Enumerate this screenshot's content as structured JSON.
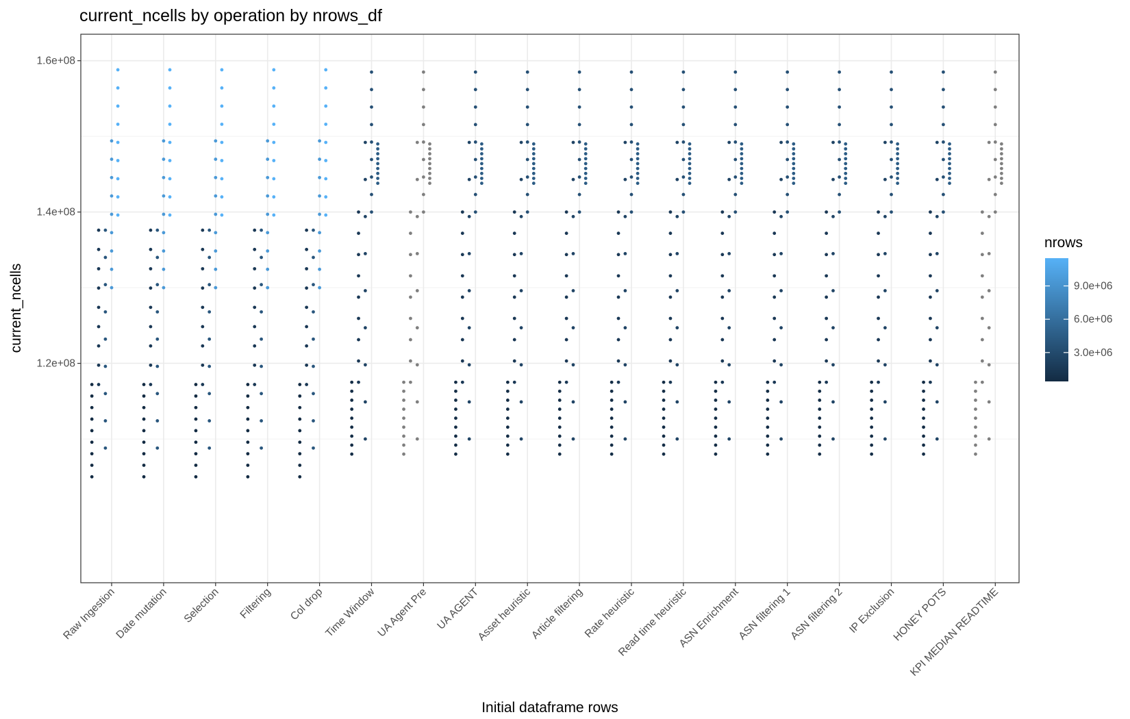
{
  "chart_data": {
    "type": "scatter",
    "title": "current_ncells by operation by nrows_df",
    "xlabel": "Initial dataframe rows",
    "ylabel": "current_ncells",
    "categories": [
      "Raw Ingestion",
      "Date mutation",
      "Selection",
      "Filtering",
      "Col drop",
      "Time Window",
      "UA Agent Pre",
      "UA AGENT",
      "Asset heuristic",
      "Article filtering",
      "Rate heuristic",
      "Read time heuristic",
      "ASN Enrichment",
      "ASN filtering 1",
      "ASN filtering 2",
      "IP Exclusion",
      "HONEY POTS",
      "KPI MEDIAN READTIME"
    ],
    "ylim": [
      91000000,
      163500000
    ],
    "yticks": [
      120000000,
      140000000,
      160000000
    ],
    "ytick_labels": [
      "1.2e+08",
      "1.4e+08",
      "1.6e+08"
    ],
    "grid": true,
    "color_scale": {
      "name": "nrows",
      "low_color": "#132b43",
      "high_color": "#56b1f7",
      "na_color": "#7f7f7f",
      "range": [
        400000,
        11500000
      ],
      "ticks": [
        3000000,
        6000000,
        9000000
      ],
      "tick_labels": [
        "3.0e+06",
        "6.0e+06",
        "9.0e+06"
      ]
    },
    "legend_position": "right",
    "series": [
      {
        "categories": [
          "Raw Ingestion",
          "Date mutation",
          "Selection",
          "Filtering",
          "Col drop"
        ],
        "color_value": 400000,
        "x_offset": -0.38,
        "y_start": 105000000,
        "y_end": 117200000
      },
      {
        "categories": [
          "Raw Ingestion",
          "Date mutation",
          "Selection",
          "Filtering",
          "Col drop"
        ],
        "color_value": 1500000,
        "x_offset": -0.25,
        "y_start": 117200000,
        "y_end": 137600000
      },
      {
        "categories": [
          "Raw Ingestion",
          "Date mutation",
          "Selection",
          "Filtering",
          "Col drop"
        ],
        "color_value": 4000000,
        "x_offset": -0.12,
        "y_start": 108800000,
        "y_end": 137600000
      },
      {
        "categories": [
          "Raw Ingestion",
          "Date mutation",
          "Selection",
          "Filtering",
          "Col drop"
        ],
        "color_value": 9500000,
        "x_offset": 0.0,
        "y_start": 130000000,
        "y_end": 149400000
      },
      {
        "categories": [
          "Raw Ingestion",
          "Date mutation",
          "Selection",
          "Filtering",
          "Col drop"
        ],
        "color_value": 11500000,
        "x_offset": 0.12,
        "y_start": 139600000,
        "y_end": 158800000
      },
      {
        "categories": [
          "Time Window",
          "UA Agent Pre",
          "UA AGENT",
          "Asset heuristic",
          "Article filtering",
          "Rate heuristic",
          "Read time heuristic",
          "ASN Enrichment",
          "ASN filtering 1",
          "ASN filtering 2",
          "IP Exclusion",
          "HONEY POTS",
          "KPI MEDIAN READTIME"
        ],
        "color_value": 600000,
        "x_offset": -0.38,
        "y_start": 108000000,
        "y_end": 117500000
      },
      {
        "categories": [
          "Time Window",
          "UA Agent Pre",
          "UA AGENT",
          "Asset heuristic",
          "Article filtering",
          "Rate heuristic",
          "Read time heuristic",
          "ASN Enrichment",
          "ASN filtering 1",
          "ASN filtering 2",
          "IP Exclusion",
          "HONEY POTS",
          "KPI MEDIAN READTIME"
        ],
        "color_value": 1500000,
        "x_offset": -0.25,
        "y_start": 117500000,
        "y_end": 140000000
      },
      {
        "categories": [
          "Time Window",
          "UA Agent Pre",
          "UA AGENT",
          "Asset heuristic",
          "Article filtering",
          "Rate heuristic",
          "Read time heuristic",
          "ASN Enrichment",
          "ASN filtering 1",
          "ASN filtering 2",
          "IP Exclusion",
          "HONEY POTS",
          "KPI MEDIAN READTIME"
        ],
        "color_value": 2500000,
        "x_offset": -0.12,
        "y_start": 110000000,
        "y_end": 149200000
      },
      {
        "categories": [
          "Time Window",
          "UA Agent Pre",
          "UA AGENT",
          "Asset heuristic",
          "Article filtering",
          "Rate heuristic",
          "Read time heuristic",
          "ASN Enrichment",
          "ASN filtering 1",
          "ASN filtering 2",
          "IP Exclusion",
          "HONEY POTS",
          "KPI MEDIAN READTIME"
        ],
        "color_value": 3500000,
        "x_offset": 0.0,
        "y_start": 140000000,
        "y_end": 158500000
      },
      {
        "categories": [
          "Time Window",
          "UA Agent Pre",
          "UA AGENT",
          "Asset heuristic",
          "Article filtering",
          "Rate heuristic",
          "Read time heuristic",
          "ASN Enrichment",
          "ASN filtering 1",
          "ASN filtering 2",
          "IP Exclusion",
          "HONEY POTS",
          "KPI MEDIAN READTIME"
        ],
        "color_value": 4500000,
        "x_offset": 0.12,
        "y_start": 143800000,
        "y_end": 149000000
      }
    ],
    "points_per_series": 9,
    "na_categories": [
      "UA Agent Pre",
      "KPI MEDIAN READTIME"
    ]
  }
}
